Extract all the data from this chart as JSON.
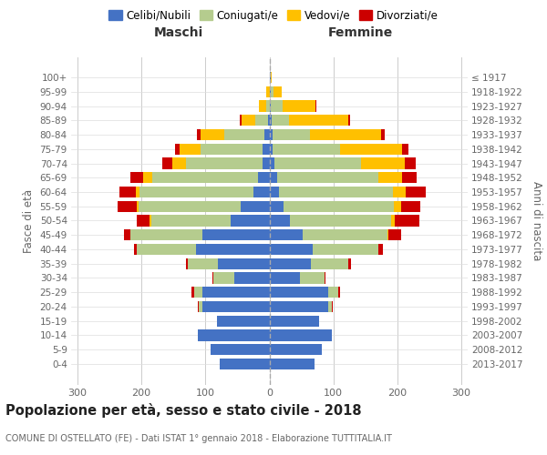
{
  "age_groups": [
    "100+",
    "95-99",
    "90-94",
    "85-89",
    "80-84",
    "75-79",
    "70-74",
    "65-69",
    "60-64",
    "55-59",
    "50-54",
    "45-49",
    "40-44",
    "35-39",
    "30-34",
    "25-29",
    "20-24",
    "15-19",
    "10-14",
    "5-9",
    "0-4"
  ],
  "birth_years": [
    "≤ 1917",
    "1918-1922",
    "1923-1927",
    "1928-1932",
    "1933-1937",
    "1938-1942",
    "1943-1947",
    "1948-1952",
    "1953-1957",
    "1958-1962",
    "1963-1967",
    "1968-1972",
    "1973-1977",
    "1978-1982",
    "1983-1987",
    "1988-1992",
    "1993-1997",
    "1998-2002",
    "2003-2007",
    "2008-2012",
    "2013-2017"
  ],
  "males_celibe": [
    0,
    0,
    0,
    2,
    8,
    10,
    10,
    18,
    25,
    45,
    60,
    105,
    115,
    80,
    55,
    105,
    105,
    82,
    112,
    92,
    78
  ],
  "males_coniugato": [
    0,
    0,
    5,
    20,
    62,
    98,
    120,
    165,
    178,
    160,
    125,
    112,
    92,
    48,
    32,
    12,
    5,
    0,
    0,
    0,
    0
  ],
  "males_vedovo": [
    0,
    5,
    12,
    22,
    38,
    32,
    22,
    14,
    6,
    2,
    2,
    0,
    0,
    0,
    0,
    0,
    0,
    0,
    0,
    0,
    0
  ],
  "males_divorziato": [
    0,
    0,
    0,
    2,
    5,
    8,
    15,
    20,
    25,
    30,
    20,
    10,
    5,
    2,
    2,
    5,
    2,
    0,
    0,
    0,
    0
  ],
  "females_nubile": [
    2,
    2,
    2,
    3,
    5,
    5,
    8,
    12,
    15,
    22,
    32,
    52,
    68,
    65,
    48,
    92,
    92,
    78,
    98,
    82,
    70
  ],
  "females_coniugata": [
    0,
    5,
    18,
    28,
    58,
    105,
    135,
    158,
    178,
    172,
    158,
    132,
    102,
    58,
    38,
    16,
    5,
    0,
    0,
    0,
    0
  ],
  "females_vedova": [
    2,
    12,
    52,
    92,
    112,
    98,
    68,
    38,
    20,
    12,
    6,
    2,
    0,
    0,
    0,
    0,
    0,
    0,
    0,
    0,
    0
  ],
  "females_divorziata": [
    0,
    0,
    2,
    3,
    5,
    10,
    18,
    22,
    32,
    30,
    38,
    20,
    8,
    5,
    2,
    2,
    2,
    0,
    0,
    0,
    0
  ],
  "colors": {
    "celibe": "#4472c4",
    "coniugato": "#b5cc8e",
    "vedovo": "#ffc000",
    "divorziato": "#cc0000"
  },
  "title": "Popolazione per età, sesso e stato civile - 2018",
  "subtitle": "COMUNE DI OSTELLATO (FE) - Dati ISTAT 1° gennaio 2018 - Elaborazione TUTTITALIA.IT",
  "xlabel_left": "Maschi",
  "xlabel_right": "Femmine",
  "ylabel_left": "Fasce di età",
  "ylabel_right": "Anni di nascita",
  "legend_labels": [
    "Celibi/Nubili",
    "Coniugati/e",
    "Vedovi/e",
    "Divorziati/e"
  ],
  "xlim": 310,
  "bg_color": "#ffffff",
  "grid_color": "#cccccc"
}
